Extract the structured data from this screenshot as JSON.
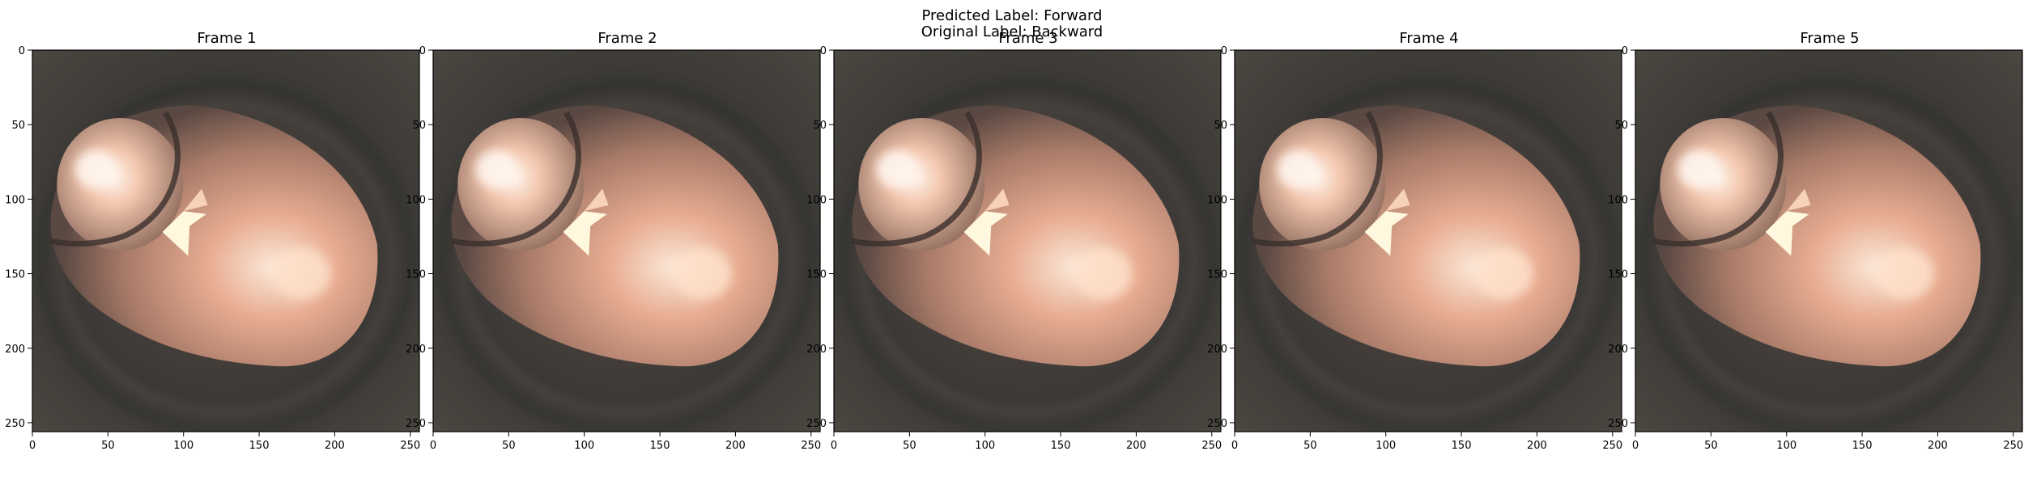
{
  "figure": {
    "suptitle_lines": [
      "Predicted Label: Forward",
      "Original Label: Backward"
    ]
  },
  "frames": [
    {
      "title": "Frame 1"
    },
    {
      "title": "Frame 2"
    },
    {
      "title": "Frame 3"
    },
    {
      "title": "Frame 4"
    },
    {
      "title": "Frame 5"
    }
  ],
  "axes": {
    "x_ticks": [
      "0",
      "50",
      "100",
      "150",
      "200",
      "250"
    ],
    "y_ticks": [
      "0",
      "50",
      "100",
      "150",
      "200",
      "250"
    ],
    "x_range": [
      0,
      256
    ],
    "y_range": [
      0,
      256
    ]
  },
  "colors": {
    "background": "#ffffff",
    "tissue_bright": "#fbe8d8",
    "tissue_mid": "#d9a48a",
    "tissue_dark": "#3b3936",
    "highlight": "#fff8de"
  }
}
